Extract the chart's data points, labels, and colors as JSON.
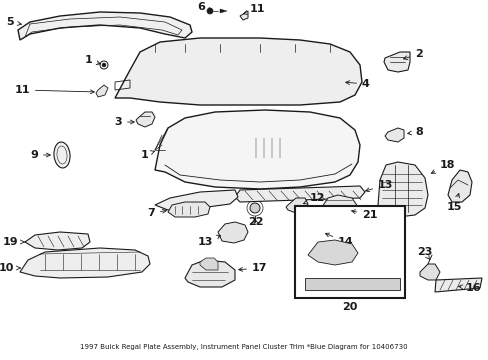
{
  "title": "1997 Buick Regal Plate Assembly, Instrument Panel Cluster Trim *Blue Diagram for 10406730",
  "bg_color": "#ffffff",
  "line_color": "#1a1a1a",
  "fig_width": 4.89,
  "fig_height": 3.6,
  "dpi": 100,
  "font_size_label": 8,
  "font_size_title": 5.0
}
